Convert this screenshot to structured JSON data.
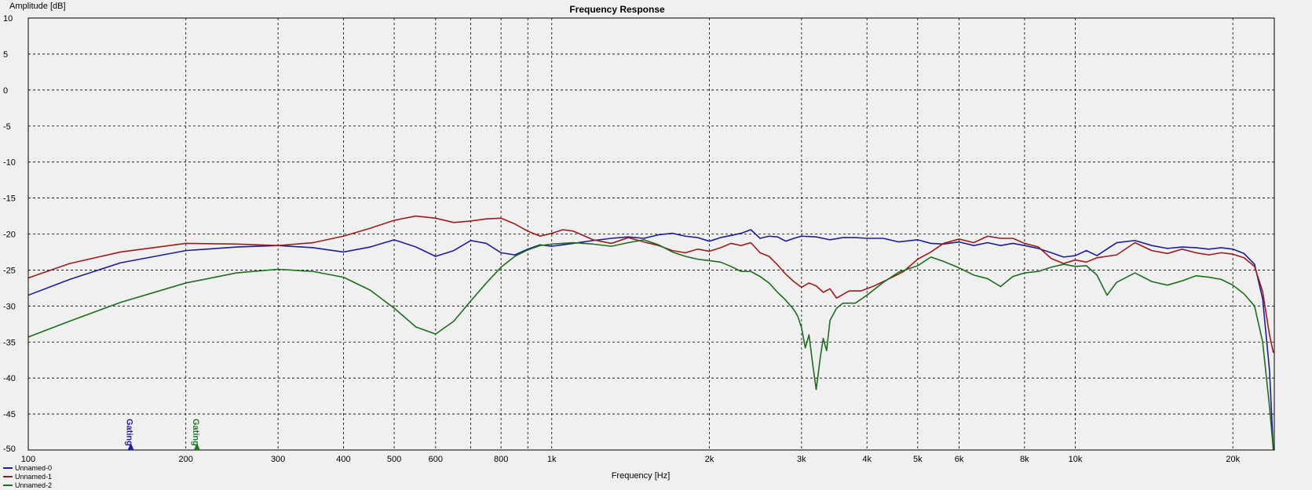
{
  "chart_data": {
    "type": "line",
    "title": "Frequency Response",
    "xlabel": "Frequency [Hz]",
    "ylabel": "Amplitude [dB]",
    "x_scale": "log",
    "xlim": [
      100,
      24000
    ],
    "ylim": [
      -50,
      10
    ],
    "grid": true,
    "legend_placement": "bottom-left",
    "y_ticks": [
      "10",
      "5",
      "0",
      "-5",
      "-10",
      "-15",
      "-20",
      "-25",
      "-30",
      "-35",
      "-40",
      "-45",
      "-50"
    ],
    "x_ticks": [
      {
        "value": 100,
        "label": "100"
      },
      {
        "value": 200,
        "label": "200"
      },
      {
        "value": 300,
        "label": "300"
      },
      {
        "value": 400,
        "label": "400"
      },
      {
        "value": 500,
        "label": "500"
      },
      {
        "value": 600,
        "label": "600"
      },
      {
        "value": 800,
        "label": "800"
      },
      {
        "value": 1000,
        "label": "1k"
      },
      {
        "value": 2000,
        "label": "2k"
      },
      {
        "value": 3000,
        "label": "3k"
      },
      {
        "value": 4000,
        "label": "4k"
      },
      {
        "value": 5000,
        "label": "5k"
      },
      {
        "value": 6000,
        "label": "6k"
      },
      {
        "value": 8000,
        "label": "8k"
      },
      {
        "value": 10000,
        "label": "10k"
      },
      {
        "value": 20000,
        "label": "20k"
      }
    ],
    "x_minor_grid": [
      700,
      900
    ],
    "gating_markers": [
      {
        "label": "Gating",
        "x": 157,
        "color": "#20209a"
      },
      {
        "label": "Gating",
        "x": 210,
        "color": "#1e7a1e"
      }
    ],
    "series": [
      {
        "name": "Unnamed-0",
        "color": "#1c1c9c",
        "points": [
          [
            100,
            -28.5
          ],
          [
            120,
            -26.3
          ],
          [
            150,
            -24
          ],
          [
            200,
            -22.3
          ],
          [
            250,
            -21.8
          ],
          [
            300,
            -21.6
          ],
          [
            350,
            -21.9
          ],
          [
            400,
            -22.5
          ],
          [
            450,
            -21.8
          ],
          [
            500,
            -20.8
          ],
          [
            550,
            -21.8
          ],
          [
            600,
            -23.1
          ],
          [
            650,
            -22.3
          ],
          [
            700,
            -20.9
          ],
          [
            750,
            -21.3
          ],
          [
            800,
            -22.6
          ],
          [
            850,
            -22.9
          ],
          [
            900,
            -22.1
          ],
          [
            950,
            -21.5
          ],
          [
            1000,
            -21.7
          ],
          [
            1100,
            -21.3
          ],
          [
            1200,
            -20.9
          ],
          [
            1300,
            -20.6
          ],
          [
            1400,
            -20.4
          ],
          [
            1500,
            -20.6
          ],
          [
            1600,
            -20.1
          ],
          [
            1700,
            -19.9
          ],
          [
            1800,
            -20.3
          ],
          [
            1900,
            -20.5
          ],
          [
            2000,
            -21
          ],
          [
            2100,
            -20.5
          ],
          [
            2200,
            -20.2
          ],
          [
            2300,
            -19.9
          ],
          [
            2400,
            -19.4
          ],
          [
            2500,
            -20.6
          ],
          [
            2600,
            -20.3
          ],
          [
            2700,
            -20.4
          ],
          [
            2800,
            -21
          ],
          [
            2900,
            -20.6
          ],
          [
            3000,
            -20.3
          ],
          [
            3200,
            -20.4
          ],
          [
            3400,
            -20.8
          ],
          [
            3600,
            -20.5
          ],
          [
            3800,
            -20.5
          ],
          [
            4000,
            -20.6
          ],
          [
            4300,
            -20.6
          ],
          [
            4600,
            -21.1
          ],
          [
            5000,
            -20.8
          ],
          [
            5300,
            -21.3
          ],
          [
            5600,
            -21.4
          ],
          [
            6000,
            -21.1
          ],
          [
            6400,
            -21.6
          ],
          [
            6800,
            -21.2
          ],
          [
            7200,
            -21.6
          ],
          [
            7600,
            -21.3
          ],
          [
            8000,
            -21.6
          ],
          [
            8500,
            -22
          ],
          [
            9000,
            -22.6
          ],
          [
            9500,
            -23.2
          ],
          [
            10000,
            -23
          ],
          [
            10500,
            -22.3
          ],
          [
            11000,
            -23
          ],
          [
            12000,
            -21.2
          ],
          [
            13000,
            -20.9
          ],
          [
            14000,
            -21.6
          ],
          [
            15000,
            -22
          ],
          [
            16000,
            -21.8
          ],
          [
            17000,
            -21.9
          ],
          [
            18000,
            -22.1
          ],
          [
            19000,
            -21.9
          ],
          [
            20000,
            -22.1
          ],
          [
            21000,
            -22.7
          ],
          [
            22000,
            -24.2
          ],
          [
            22800,
            -29
          ],
          [
            23500,
            -39
          ],
          [
            23900,
            -50
          ]
        ]
      },
      {
        "name": "Unnamed-1",
        "color": "#9c1c1c",
        "points": [
          [
            100,
            -26.1
          ],
          [
            120,
            -24.1
          ],
          [
            150,
            -22.5
          ],
          [
            200,
            -21.3
          ],
          [
            250,
            -21.4
          ],
          [
            300,
            -21.6
          ],
          [
            350,
            -21.2
          ],
          [
            400,
            -20.3
          ],
          [
            450,
            -19.2
          ],
          [
            500,
            -18.1
          ],
          [
            550,
            -17.5
          ],
          [
            600,
            -17.8
          ],
          [
            650,
            -18.4
          ],
          [
            700,
            -18.2
          ],
          [
            750,
            -17.9
          ],
          [
            800,
            -17.8
          ],
          [
            850,
            -18.6
          ],
          [
            900,
            -19.6
          ],
          [
            950,
            -20.3
          ],
          [
            1000,
            -19.9
          ],
          [
            1050,
            -19.4
          ],
          [
            1100,
            -19.6
          ],
          [
            1200,
            -20.8
          ],
          [
            1300,
            -21.3
          ],
          [
            1400,
            -20.5
          ],
          [
            1500,
            -21.1
          ],
          [
            1600,
            -21.6
          ],
          [
            1700,
            -22.3
          ],
          [
            1800,
            -22.6
          ],
          [
            1900,
            -22.1
          ],
          [
            2000,
            -22.4
          ],
          [
            2100,
            -21.9
          ],
          [
            2200,
            -21.3
          ],
          [
            2300,
            -21.6
          ],
          [
            2400,
            -21.2
          ],
          [
            2500,
            -22.6
          ],
          [
            2600,
            -23.1
          ],
          [
            2700,
            -24.3
          ],
          [
            2800,
            -25.6
          ],
          [
            2900,
            -26.6
          ],
          [
            3000,
            -27.4
          ],
          [
            3100,
            -26.8
          ],
          [
            3200,
            -27.2
          ],
          [
            3300,
            -28.1
          ],
          [
            3400,
            -27.6
          ],
          [
            3500,
            -28.9
          ],
          [
            3700,
            -27.9
          ],
          [
            3900,
            -27.9
          ],
          [
            4100,
            -27.3
          ],
          [
            4300,
            -26.6
          ],
          [
            4500,
            -25.9
          ],
          [
            4700,
            -25.2
          ],
          [
            5000,
            -23.5
          ],
          [
            5300,
            -22.5
          ],
          [
            5600,
            -21.3
          ],
          [
            6000,
            -20.7
          ],
          [
            6400,
            -21.2
          ],
          [
            6800,
            -20.3
          ],
          [
            7200,
            -20.6
          ],
          [
            7600,
            -20.6
          ],
          [
            8000,
            -21.3
          ],
          [
            8500,
            -21.8
          ],
          [
            9000,
            -23.4
          ],
          [
            9500,
            -24.1
          ],
          [
            10000,
            -23.6
          ],
          [
            10500,
            -23.9
          ],
          [
            11000,
            -23.3
          ],
          [
            12000,
            -22.9
          ],
          [
            13000,
            -21.2
          ],
          [
            14000,
            -22.3
          ],
          [
            15000,
            -22.7
          ],
          [
            16000,
            -22.1
          ],
          [
            17000,
            -22.6
          ],
          [
            18000,
            -22.9
          ],
          [
            19000,
            -22.6
          ],
          [
            20000,
            -22.8
          ],
          [
            21000,
            -23.3
          ],
          [
            22000,
            -24.5
          ],
          [
            22800,
            -28
          ],
          [
            23500,
            -34
          ],
          [
            23900,
            -36.5
          ]
        ]
      },
      {
        "name": "Unnamed-2",
        "color": "#1c6e1c",
        "points": [
          [
            100,
            -34.3
          ],
          [
            120,
            -32.1
          ],
          [
            150,
            -29.5
          ],
          [
            200,
            -26.8
          ],
          [
            250,
            -25.4
          ],
          [
            300,
            -24.9
          ],
          [
            350,
            -25.2
          ],
          [
            400,
            -26
          ],
          [
            450,
            -27.8
          ],
          [
            500,
            -30.3
          ],
          [
            550,
            -32.9
          ],
          [
            600,
            -33.9
          ],
          [
            650,
            -32.1
          ],
          [
            700,
            -29.3
          ],
          [
            750,
            -26.8
          ],
          [
            800,
            -24.6
          ],
          [
            850,
            -23.1
          ],
          [
            900,
            -22.2
          ],
          [
            950,
            -21.6
          ],
          [
            1000,
            -21.4
          ],
          [
            1100,
            -21.2
          ],
          [
            1200,
            -21.4
          ],
          [
            1300,
            -21.7
          ],
          [
            1400,
            -21.2
          ],
          [
            1500,
            -20.8
          ],
          [
            1600,
            -21.5
          ],
          [
            1700,
            -22.5
          ],
          [
            1800,
            -23.1
          ],
          [
            1900,
            -23.5
          ],
          [
            2000,
            -23.7
          ],
          [
            2100,
            -23.9
          ],
          [
            2200,
            -24.5
          ],
          [
            2300,
            -25.2
          ],
          [
            2400,
            -25.2
          ],
          [
            2500,
            -25.9
          ],
          [
            2600,
            -26.8
          ],
          [
            2700,
            -28.1
          ],
          [
            2800,
            -29.2
          ],
          [
            2900,
            -30.5
          ],
          [
            2950,
            -31.4
          ],
          [
            3000,
            -33
          ],
          [
            3050,
            -35.8
          ],
          [
            3100,
            -34
          ],
          [
            3150,
            -38
          ],
          [
            3200,
            -41.6
          ],
          [
            3260,
            -37
          ],
          [
            3300,
            -34.5
          ],
          [
            3350,
            -36.2
          ],
          [
            3400,
            -32
          ],
          [
            3500,
            -30.3
          ],
          [
            3600,
            -29.6
          ],
          [
            3800,
            -29.6
          ],
          [
            4000,
            -28.5
          ],
          [
            4300,
            -26.7
          ],
          [
            4600,
            -25.3
          ],
          [
            5000,
            -24.4
          ],
          [
            5300,
            -23.2
          ],
          [
            5600,
            -23.8
          ],
          [
            6000,
            -24.7
          ],
          [
            6400,
            -25.7
          ],
          [
            6800,
            -26.2
          ],
          [
            7200,
            -27.3
          ],
          [
            7600,
            -25.9
          ],
          [
            8000,
            -25.4
          ],
          [
            8500,
            -25.2
          ],
          [
            9000,
            -24.6
          ],
          [
            9500,
            -24.2
          ],
          [
            10000,
            -24.5
          ],
          [
            10500,
            -24.4
          ],
          [
            11000,
            -25.7
          ],
          [
            11500,
            -28.5
          ],
          [
            12000,
            -26.7
          ],
          [
            13000,
            -25.4
          ],
          [
            14000,
            -26.6
          ],
          [
            15000,
            -27.1
          ],
          [
            16000,
            -26.5
          ],
          [
            17000,
            -25.8
          ],
          [
            18000,
            -26
          ],
          [
            19000,
            -26.3
          ],
          [
            20000,
            -27.1
          ],
          [
            21000,
            -28.3
          ],
          [
            22000,
            -30
          ],
          [
            22800,
            -35
          ],
          [
            23500,
            -44
          ],
          [
            23900,
            -50
          ]
        ]
      }
    ]
  }
}
